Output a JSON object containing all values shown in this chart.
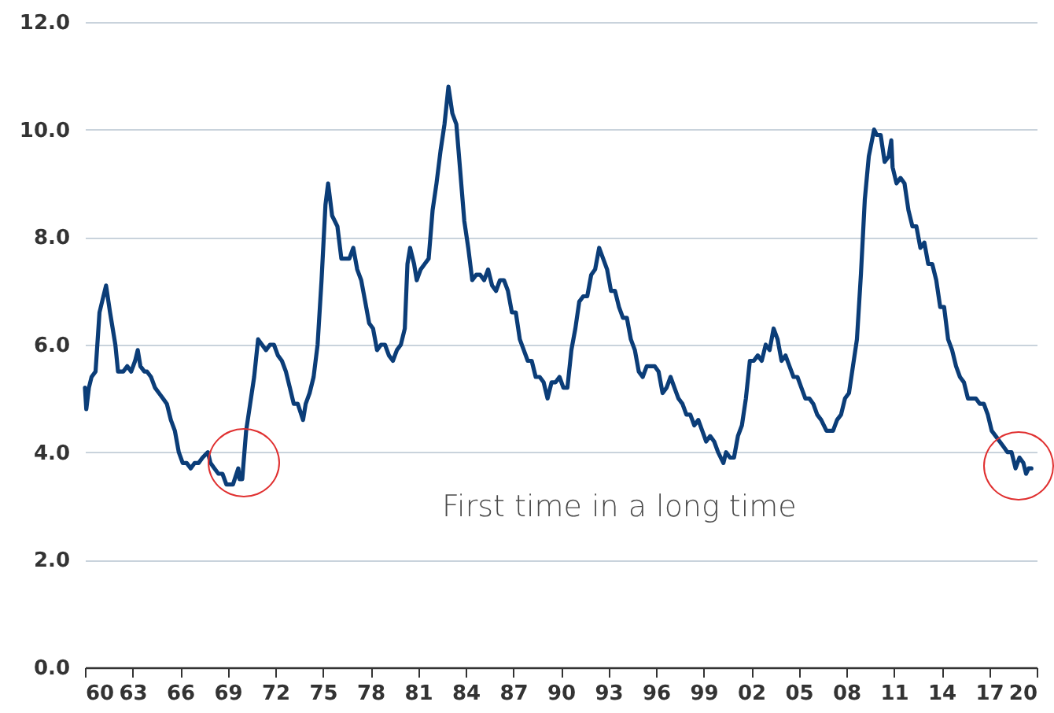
{
  "chart_data": {
    "type": "line",
    "annotations": [
      "First time in a long time"
    ],
    "x": [
      "1960-01",
      "1960-02",
      "1960-04",
      "1960-06",
      "1960-09",
      "1960-12",
      "1961-03",
      "1961-05",
      "1961-08",
      "1961-12",
      "1962-02",
      "1962-06",
      "1962-09",
      "1962-12",
      "1963-03",
      "1963-05",
      "1963-07",
      "1963-10",
      "1963-12",
      "1964-03",
      "1964-06",
      "1964-09",
      "1964-12",
      "1965-03",
      "1965-06",
      "1965-09",
      "1965-12",
      "1966-03",
      "1966-06",
      "1966-09",
      "1966-12",
      "1967-03",
      "1967-06",
      "1967-10",
      "1967-12",
      "1968-03",
      "1968-06",
      "1968-09",
      "1968-12",
      "1969-03",
      "1969-05",
      "1969-09",
      "1969-10",
      "1969-12",
      "1970-03",
      "1970-06",
      "1970-09",
      "1970-12",
      "1971-03",
      "1971-06",
      "1971-09",
      "1971-12",
      "1972-03",
      "1972-06",
      "1972-09",
      "1972-12",
      "1973-03",
      "1973-06",
      "1973-10",
      "1973-12",
      "1974-03",
      "1974-06",
      "1974-09",
      "1974-12",
      "1975-03",
      "1975-05",
      "1975-08",
      "1975-12",
      "1976-03",
      "1976-06",
      "1976-09",
      "1976-12",
      "1977-03",
      "1977-06",
      "1977-09",
      "1977-12",
      "1978-03",
      "1978-06",
      "1978-09",
      "1978-12",
      "1979-03",
      "1979-06",
      "1979-09",
      "1979-12",
      "1980-03",
      "1980-05",
      "1980-07",
      "1980-10",
      "1980-12",
      "1981-03",
      "1981-06",
      "1981-09",
      "1981-12",
      "1982-03",
      "1982-06",
      "1982-09",
      "1982-12",
      "1983-03",
      "1983-06",
      "1983-09",
      "1983-12",
      "1984-03",
      "1984-06",
      "1984-09",
      "1984-12",
      "1985-03",
      "1985-06",
      "1985-09",
      "1985-12",
      "1986-03",
      "1986-06",
      "1986-09",
      "1986-12",
      "1987-03",
      "1987-06",
      "1987-09",
      "1987-12",
      "1988-03",
      "1988-06",
      "1988-09",
      "1988-12",
      "1989-03",
      "1989-06",
      "1989-09",
      "1989-12",
      "1990-03",
      "1990-06",
      "1990-09",
      "1990-12",
      "1991-03",
      "1991-06",
      "1991-09",
      "1991-12",
      "1992-03",
      "1992-06",
      "1992-09",
      "1992-12",
      "1993-03",
      "1993-06",
      "1993-09",
      "1993-12",
      "1994-03",
      "1994-06",
      "1994-09",
      "1994-12",
      "1995-03",
      "1995-06",
      "1995-09",
      "1995-12",
      "1996-03",
      "1996-06",
      "1996-09",
      "1996-12",
      "1997-03",
      "1997-06",
      "1997-09",
      "1997-12",
      "1998-03",
      "1998-06",
      "1998-09",
      "1998-12",
      "1999-03",
      "1999-06",
      "1999-09",
      "1999-12",
      "2000-04",
      "2000-06",
      "2000-09",
      "2000-12",
      "2001-03",
      "2001-06",
      "2001-09",
      "2001-12",
      "2002-03",
      "2002-06",
      "2002-09",
      "2002-12",
      "2003-03",
      "2003-06",
      "2003-09",
      "2003-12",
      "2004-03",
      "2004-06",
      "2004-09",
      "2004-12",
      "2005-03",
      "2005-06",
      "2005-09",
      "2005-12",
      "2006-03",
      "2006-06",
      "2006-10",
      "2006-12",
      "2007-03",
      "2007-06",
      "2007-09",
      "2007-12",
      "2008-03",
      "2008-06",
      "2008-09",
      "2008-12",
      "2009-03",
      "2009-06",
      "2009-10",
      "2009-12",
      "2010-03",
      "2010-06",
      "2010-09",
      "2010-11",
      "2010-12",
      "2011-03",
      "2011-06",
      "2011-09",
      "2011-12",
      "2012-03",
      "2012-06",
      "2012-09",
      "2012-12",
      "2013-03",
      "2013-06",
      "2013-09",
      "2013-12",
      "2014-03",
      "2014-06",
      "2014-09",
      "2014-12",
      "2015-03",
      "2015-06",
      "2015-09",
      "2015-12",
      "2016-03",
      "2016-06",
      "2016-09",
      "2016-12",
      "2017-03",
      "2017-06",
      "2017-09",
      "2017-12",
      "2018-03",
      "2018-06",
      "2018-09",
      "2018-12",
      "2019-03",
      "2019-05",
      "2019-07",
      "2019-09"
    ],
    "series": [
      {
        "color": "#0b3d78",
        "values": [
          5.2,
          4.8,
          5.2,
          5.4,
          5.5,
          6.6,
          6.9,
          7.1,
          6.6,
          6.0,
          5.5,
          5.5,
          5.6,
          5.5,
          5.7,
          5.9,
          5.6,
          5.5,
          5.5,
          5.4,
          5.2,
          5.1,
          5.0,
          4.9,
          4.6,
          4.4,
          4.0,
          3.8,
          3.8,
          3.7,
          3.8,
          3.8,
          3.9,
          4.0,
          3.8,
          3.7,
          3.6,
          3.6,
          3.4,
          3.4,
          3.4,
          3.7,
          3.5,
          3.5,
          4.4,
          4.9,
          5.4,
          6.1,
          6.0,
          5.9,
          6.0,
          6.0,
          5.8,
          5.7,
          5.5,
          5.2,
          4.9,
          4.9,
          4.6,
          4.9,
          5.1,
          5.4,
          6.0,
          7.2,
          8.6,
          9.0,
          8.4,
          8.2,
          7.6,
          7.6,
          7.6,
          7.8,
          7.4,
          7.2,
          6.8,
          6.4,
          6.3,
          5.9,
          6.0,
          6.0,
          5.8,
          5.7,
          5.9,
          6.0,
          6.3,
          7.5,
          7.8,
          7.5,
          7.2,
          7.4,
          7.5,
          7.6,
          8.5,
          9.0,
          9.6,
          10.1,
          10.8,
          10.3,
          10.1,
          9.2,
          8.3,
          7.8,
          7.2,
          7.3,
          7.3,
          7.2,
          7.4,
          7.1,
          7.0,
          7.2,
          7.2,
          7.0,
          6.6,
          6.6,
          6.1,
          5.9,
          5.7,
          5.7,
          5.4,
          5.4,
          5.3,
          5.0,
          5.3,
          5.3,
          5.4,
          5.2,
          5.2,
          5.9,
          6.3,
          6.8,
          6.9,
          6.9,
          7.3,
          7.4,
          7.8,
          7.6,
          7.4,
          7.0,
          7.0,
          6.7,
          6.5,
          6.5,
          6.1,
          5.9,
          5.5,
          5.4,
          5.6,
          5.6,
          5.6,
          5.5,
          5.1,
          5.2,
          5.4,
          5.2,
          5.0,
          4.9,
          4.7,
          4.7,
          4.5,
          4.6,
          4.4,
          4.2,
          4.3,
          4.2,
          4.0,
          3.8,
          4.0,
          3.9,
          3.9,
          4.3,
          4.5,
          5.0,
          5.7,
          5.7,
          5.8,
          5.7,
          6.0,
          5.9,
          6.3,
          6.1,
          5.7,
          5.8,
          5.6,
          5.4,
          5.4,
          5.2,
          5.0,
          5.0,
          4.9,
          4.7,
          4.6,
          4.4,
          4.4,
          4.4,
          4.6,
          4.7,
          5.0,
          5.1,
          5.6,
          6.1,
          7.3,
          8.7,
          9.5,
          10.0,
          9.9,
          9.9,
          9.4,
          9.5,
          9.8,
          9.3,
          9.0,
          9.1,
          9.0,
          8.5,
          8.2,
          8.2,
          7.8,
          7.9,
          7.5,
          7.5,
          7.2,
          6.7,
          6.7,
          6.1,
          5.9,
          5.6,
          5.4,
          5.3,
          5.0,
          5.0,
          5.0,
          4.9,
          4.9,
          4.7,
          4.4,
          4.3,
          4.2,
          4.1,
          4.0,
          4.0,
          3.7,
          3.9,
          3.8,
          3.6,
          3.7,
          3.7
        ]
      }
    ],
    "xlim": [
      "1960-01",
      "2020-01"
    ],
    "xticks": [
      {
        "value": "1960",
        "label": "60"
      },
      {
        "value": "1963",
        "label": "63"
      },
      {
        "value": "1966",
        "label": "66"
      },
      {
        "value": "1969",
        "label": "69"
      },
      {
        "value": "1972",
        "label": "72"
      },
      {
        "value": "1975",
        "label": "75"
      },
      {
        "value": "1978",
        "label": "78"
      },
      {
        "value": "1981",
        "label": "81"
      },
      {
        "value": "1984",
        "label": "84"
      },
      {
        "value": "1987",
        "label": "87"
      },
      {
        "value": "1990",
        "label": "90"
      },
      {
        "value": "1993",
        "label": "93"
      },
      {
        "value": "1996",
        "label": "96"
      },
      {
        "value": "1999",
        "label": "99"
      },
      {
        "value": "2002",
        "label": "02"
      },
      {
        "value": "2005",
        "label": "05"
      },
      {
        "value": "2008",
        "label": "08"
      },
      {
        "value": "2011",
        "label": "11"
      },
      {
        "value": "2014",
        "label": "14"
      },
      {
        "value": "2017",
        "label": "17"
      },
      {
        "value": "2020",
        "label": "20"
      }
    ],
    "ylim": [
      0,
      12
    ],
    "yticks": [
      {
        "value": 0,
        "label": "0.0"
      },
      {
        "value": 2,
        "label": "2.0"
      },
      {
        "value": 4,
        "label": "4.0"
      },
      {
        "value": 6,
        "label": "6.0"
      },
      {
        "value": 8,
        "label": "8.0"
      },
      {
        "value": 10,
        "label": "10.0"
      },
      {
        "value": 12,
        "label": "12.0"
      }
    ],
    "grid": "y",
    "marker": "none",
    "line_style": "solid"
  }
}
